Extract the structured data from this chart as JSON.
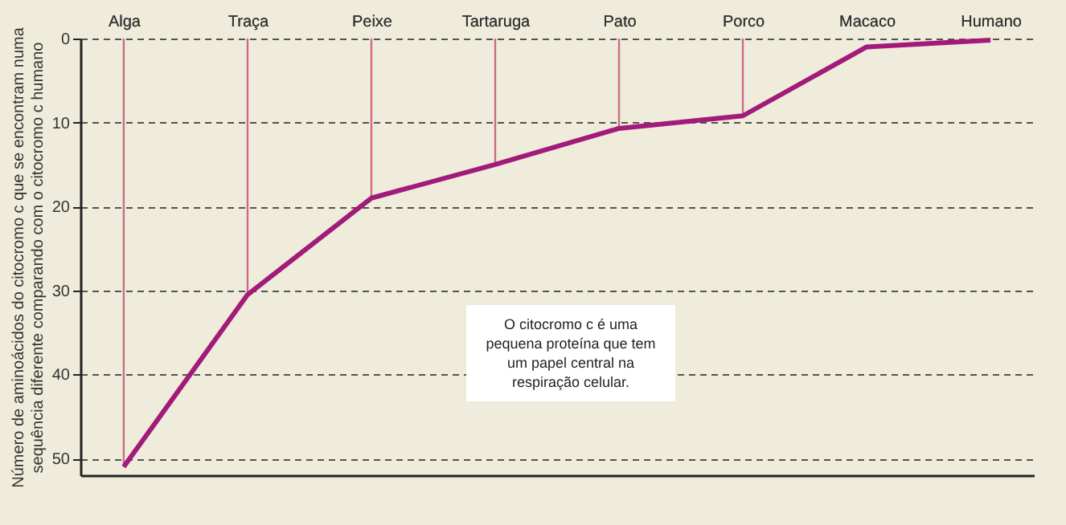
{
  "chart_data": {
    "type": "line",
    "ylabel": "Número de aminoácidos do citocromo c que se encontram numa sequência diferente comparando com o citocromo c humano",
    "categories": [
      "Alga",
      "Traça",
      "Peixe",
      "Tartaruga",
      "Pato",
      "Porco",
      "Macaco",
      "Humano"
    ],
    "series": [
      {
        "color": "#a21a7a",
        "values": [
          51,
          30.5,
          19,
          15,
          10.7,
          9.2,
          1,
          0.2
        ],
        "errors": [
          [
            0,
            51
          ],
          [
            0,
            30.5
          ],
          [
            0,
            19
          ],
          [
            0,
            15
          ],
          [
            0,
            10.7
          ],
          [
            0,
            9.2
          ],
          null,
          null
        ]
      }
    ],
    "ylim": [
      52,
      0
    ],
    "yticks": [
      0,
      10,
      20,
      30,
      40,
      50
    ],
    "grid": "y",
    "marker": "none",
    "line_style": "solid",
    "annotations": [
      "O citocromo c é uma pequena proteína que tem um papel central na respiração celular."
    ]
  }
}
